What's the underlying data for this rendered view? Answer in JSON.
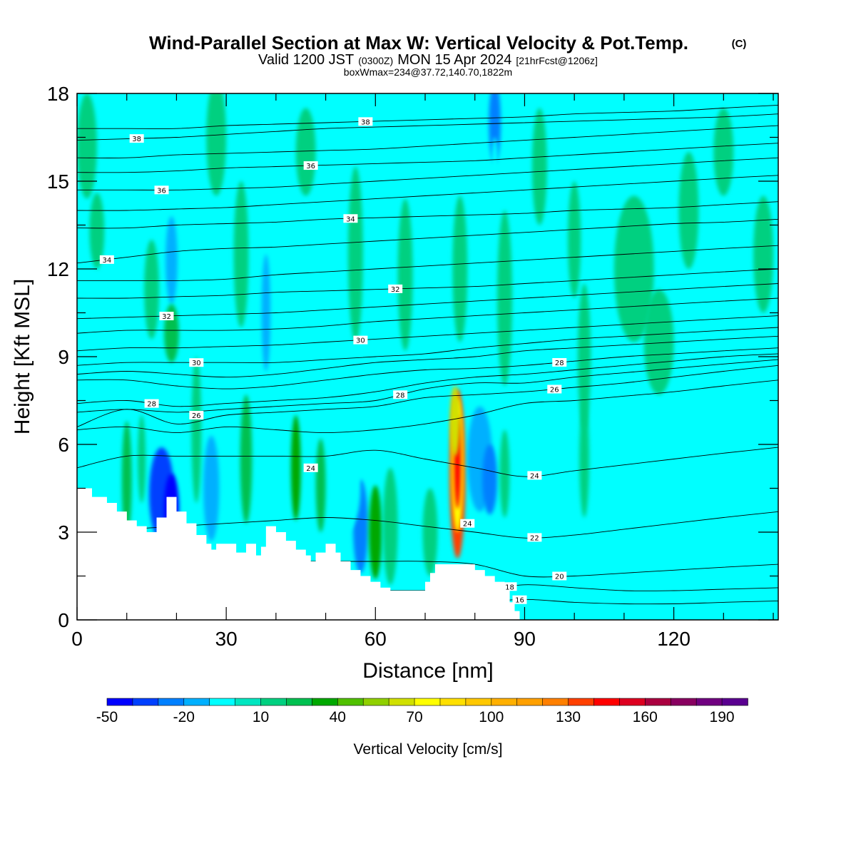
{
  "title": {
    "main": "Wind-Parallel Section at Max W: Vertical Velocity & Pot.Temp.",
    "copyright": "(C)",
    "valid_a": "Valid 1200 JST",
    "valid_b": "(0300Z)",
    "valid_c": "MON 15 Apr 2024",
    "valid_d": "[21hrFcst@1206z]",
    "box": "boxWmax=234@37.72,140.70,1822m"
  },
  "chart_data": {
    "type": "heatmap",
    "xlabel": "Distance [nm]",
    "ylabel": "Height [Kft MSL]",
    "xlim": [
      0,
      141
    ],
    "ylim": [
      0,
      18
    ],
    "x_ticks": [
      0,
      30,
      60,
      90,
      120
    ],
    "y_ticks": [
      0,
      3,
      6,
      9,
      12,
      15,
      18
    ],
    "colorbar": {
      "title": "Vertical Velocity [cm/s]",
      "min": -50,
      "step": 10,
      "labels": [
        -50,
        -20,
        10,
        40,
        70,
        100,
        130,
        160,
        190
      ],
      "colors": [
        "#0000ff",
        "#0040ff",
        "#0080ff",
        "#00b0ff",
        "#00ffff",
        "#00e6c0",
        "#00d080",
        "#00c050",
        "#00a800",
        "#50c000",
        "#90d000",
        "#d0e000",
        "#ffff00",
        "#ffe000",
        "#ffc800",
        "#ffb000",
        "#ffa000",
        "#ff8000",
        "#ff4000",
        "#ff0000",
        "#dd0020",
        "#aa0040",
        "#880060",
        "#700080",
        "#5a0090"
      ]
    },
    "terrain": [
      [
        0,
        4.5
      ],
      [
        3,
        4.5
      ],
      [
        3,
        4.2
      ],
      [
        6,
        4.2
      ],
      [
        6,
        4.0
      ],
      [
        8,
        4.0
      ],
      [
        8,
        3.7
      ],
      [
        10,
        3.7
      ],
      [
        10,
        3.4
      ],
      [
        12,
        3.4
      ],
      [
        12,
        3.2
      ],
      [
        14,
        3.2
      ],
      [
        14,
        3.0
      ],
      [
        16,
        3.0
      ],
      [
        16,
        3.5
      ],
      [
        18,
        3.5
      ],
      [
        18,
        4.2
      ],
      [
        20,
        4.2
      ],
      [
        20,
        3.7
      ],
      [
        22,
        3.7
      ],
      [
        22,
        3.3
      ],
      [
        24,
        3.3
      ],
      [
        24,
        2.9
      ],
      [
        26,
        2.9
      ],
      [
        26,
        2.6
      ],
      [
        27,
        2.6
      ],
      [
        27,
        2.4
      ],
      [
        28,
        2.4
      ],
      [
        28,
        2.6
      ],
      [
        32,
        2.6
      ],
      [
        32,
        2.3
      ],
      [
        34,
        2.3
      ],
      [
        34,
        2.6
      ],
      [
        36,
        2.6
      ],
      [
        36,
        2.2
      ],
      [
        37,
        2.2
      ],
      [
        37,
        2.5
      ],
      [
        38,
        2.5
      ],
      [
        38,
        3.2
      ],
      [
        40,
        3.2
      ],
      [
        40,
        3.0
      ],
      [
        42,
        3.0
      ],
      [
        42,
        2.7
      ],
      [
        44,
        2.7
      ],
      [
        44,
        2.4
      ],
      [
        46,
        2.4
      ],
      [
        46,
        2.2
      ],
      [
        47,
        2.2
      ],
      [
        47,
        2.0
      ],
      [
        48,
        2.0
      ],
      [
        48,
        2.3
      ],
      [
        50,
        2.3
      ],
      [
        50,
        2.6
      ],
      [
        52,
        2.6
      ],
      [
        52,
        2.3
      ],
      [
        53,
        2.3
      ],
      [
        53,
        2.0
      ],
      [
        55,
        2.0
      ],
      [
        55,
        1.7
      ],
      [
        57,
        1.7
      ],
      [
        57,
        1.5
      ],
      [
        59,
        1.5
      ],
      [
        59,
        1.3
      ],
      [
        61,
        1.3
      ],
      [
        61,
        1.1
      ],
      [
        63,
        1.1
      ],
      [
        63,
        1.0
      ],
      [
        70,
        1.0
      ],
      [
        70,
        1.3
      ],
      [
        71,
        1.3
      ],
      [
        71,
        1.6
      ],
      [
        72,
        1.6
      ],
      [
        72,
        1.9
      ],
      [
        80,
        1.9
      ],
      [
        80,
        1.7
      ],
      [
        82,
        1.7
      ],
      [
        82,
        1.5
      ],
      [
        84,
        1.5
      ],
      [
        84,
        1.3
      ],
      [
        86,
        1.3
      ],
      [
        86,
        1.0
      ],
      [
        87,
        1.0
      ],
      [
        87,
        0.6
      ],
      [
        88,
        0.6
      ],
      [
        88,
        0.3
      ],
      [
        89,
        0.3
      ],
      [
        89,
        0.0
      ]
    ],
    "theta_contours": [
      {
        "label": "38",
        "label_x": 58,
        "y": [
          16.8,
          16.8,
          16.8,
          16.9,
          16.95,
          17.0,
          17.05,
          17.1,
          17.15,
          17.2,
          17.3,
          17.35,
          17.4,
          17.5,
          17.6
        ]
      },
      {
        "label": "38",
        "label_x": 12,
        "y": [
          16.4,
          16.45,
          16.5,
          16.6,
          16.7,
          16.8,
          16.85,
          16.9,
          16.95,
          17.0,
          17.05,
          17.1,
          17.15,
          17.2,
          17.3
        ]
      },
      {
        "label": "",
        "label_x": 0,
        "y": [
          15.8,
          15.8,
          15.9,
          15.95,
          16.0,
          16.05,
          16.1,
          16.2,
          16.3,
          16.4,
          16.5,
          16.6,
          16.7,
          16.8,
          16.9
        ]
      },
      {
        "label": "36",
        "label_x": 47,
        "y": [
          15.3,
          15.3,
          15.35,
          15.45,
          15.5,
          15.55,
          15.6,
          15.65,
          15.7,
          15.8,
          15.9,
          16.0,
          16.1,
          16.2,
          16.3
        ]
      },
      {
        "label": "36",
        "label_x": 17,
        "y": [
          14.7,
          14.7,
          14.7,
          14.75,
          14.8,
          14.9,
          15.0,
          15.1,
          15.2,
          15.3,
          15.4,
          15.5,
          15.6,
          15.7,
          15.8
        ]
      },
      {
        "label": "",
        "label_x": 0,
        "y": [
          14.0,
          14.0,
          14.05,
          14.1,
          14.2,
          14.3,
          14.4,
          14.5,
          14.6,
          14.7,
          14.8,
          14.9,
          15.0,
          15.1,
          15.2
        ]
      },
      {
        "label": "34",
        "label_x": 55,
        "y": [
          13.4,
          13.4,
          13.5,
          13.55,
          13.6,
          13.7,
          13.75,
          13.8,
          13.85,
          13.9,
          14.0,
          14.05,
          14.1,
          14.2,
          14.3
        ]
      },
      {
        "label": "34",
        "label_x": 6,
        "y": [
          12.2,
          12.4,
          12.6,
          12.7,
          12.75,
          12.85,
          12.95,
          13.05,
          13.15,
          13.25,
          13.35,
          13.45,
          13.55,
          13.6,
          13.7
        ]
      },
      {
        "label": "",
        "label_x": 0,
        "y": [
          11.6,
          11.6,
          11.6,
          11.65,
          11.8,
          11.9,
          12.0,
          12.1,
          12.2,
          12.3,
          12.4,
          12.5,
          12.6,
          12.7,
          12.8
        ]
      },
      {
        "label": "32",
        "label_x": 64,
        "y": [
          11.0,
          11.0,
          11.05,
          11.1,
          11.2,
          11.25,
          11.3,
          11.35,
          11.4,
          11.5,
          11.6,
          11.7,
          11.8,
          11.9,
          12.0
        ]
      },
      {
        "label": "32",
        "label_x": 18,
        "y": [
          10.3,
          10.35,
          10.4,
          10.45,
          10.5,
          10.6,
          10.7,
          10.8,
          10.9,
          11.0,
          11.1,
          11.2,
          11.3,
          11.4,
          11.5
        ]
      },
      {
        "label": "",
        "label_x": 0,
        "y": [
          9.8,
          9.9,
          9.9,
          9.9,
          9.95,
          10.05,
          10.2,
          10.3,
          10.4,
          10.5,
          10.6,
          10.7,
          10.8,
          10.9,
          11.0
        ]
      },
      {
        "label": "30",
        "label_x": 57,
        "y": [
          9.2,
          9.3,
          9.3,
          9.35,
          9.4,
          9.5,
          9.6,
          9.7,
          9.8,
          9.9,
          10.0,
          10.1,
          10.2,
          10.3,
          10.4
        ]
      },
      {
        "label": "30",
        "label_x": 24,
        "y": [
          8.7,
          8.8,
          8.8,
          8.8,
          8.8,
          8.9,
          9.0,
          9.1,
          9.3,
          9.45,
          9.6,
          9.7,
          9.8,
          9.9,
          10.0
        ]
      },
      {
        "label": "",
        "label_x": 0,
        "y": [
          8.4,
          8.5,
          8.4,
          8.3,
          8.4,
          8.6,
          8.8,
          8.9,
          9.0,
          9.2,
          9.3,
          9.4,
          9.5,
          9.6,
          9.7
        ]
      },
      {
        "label": "28",
        "label_x": 97,
        "y": [
          8.2,
          8.2,
          8.0,
          7.9,
          8.0,
          8.2,
          8.4,
          8.55,
          8.6,
          8.7,
          8.85,
          9.0,
          9.1,
          9.2,
          9.3
        ]
      },
      {
        "label": "28",
        "label_x": 15,
        "y": [
          7.4,
          7.5,
          7.3,
          7.4,
          7.5,
          7.6,
          7.8,
          8.1,
          8.3,
          8.4,
          8.55,
          8.7,
          8.85,
          9.0,
          9.1
        ]
      },
      {
        "label": "28",
        "label_x": 65,
        "y": [
          7.1,
          7.2,
          7.1,
          7.2,
          7.3,
          7.4,
          7.5,
          7.9,
          8.1,
          8.1,
          8.3,
          8.45,
          8.6,
          8.75,
          8.9
        ]
      },
      {
        "label": "26",
        "label_x": 96,
        "y": [
          6.6,
          7.2,
          6.7,
          7.0,
          7.1,
          7.2,
          7.3,
          7.6,
          7.7,
          7.8,
          7.95,
          8.1,
          8.3,
          8.5,
          8.7
        ]
      },
      {
        "label": "",
        "label_x": 0,
        "y": [
          6.5,
          6.6,
          6.4,
          6.6,
          6.5,
          6.4,
          6.5,
          6.7,
          7.0,
          7.4,
          7.5,
          7.65,
          7.8,
          8.0,
          8.2
        ]
      },
      {
        "label": "24",
        "label_x": 92,
        "y": [
          5.2,
          5.6,
          5.6,
          5.6,
          5.6,
          5.6,
          5.8,
          5.5,
          5.2,
          4.9,
          5.1,
          5.3,
          5.5,
          5.7,
          5.9
        ]
      },
      {
        "label": "22",
        "label_x": 92,
        "y": [
          3.0,
          3.1,
          3.2,
          3.3,
          3.4,
          3.5,
          3.4,
          3.2,
          3.0,
          2.8,
          2.9,
          3.1,
          3.3,
          3.5,
          3.7
        ]
      },
      {
        "label": "20",
        "label_x": 97,
        "y": [
          2.0,
          2.0,
          2.0,
          2.0,
          2.0,
          2.0,
          2.0,
          2.0,
          1.9,
          1.5,
          1.5,
          1.6,
          1.7,
          1.8,
          1.9
        ]
      },
      {
        "label": "18",
        "label_x": 87,
        "y": [
          1.0,
          1.0,
          1.0,
          1.0,
          1.0,
          1.0,
          1.0,
          1.0,
          1.0,
          1.2,
          1.1,
          1.0,
          1.0,
          1.05,
          1.1
        ]
      },
      {
        "label": "16",
        "label_x": 89,
        "y": [
          0.6,
          0.6,
          0.6,
          0.6,
          0.6,
          0.6,
          0.6,
          0.6,
          0.6,
          0.7,
          0.6,
          0.55,
          0.55,
          0.6,
          0.65
        ]
      }
    ],
    "contour_x": [
      0,
      10,
      20,
      30,
      40,
      50,
      60,
      70,
      80,
      90,
      100,
      110,
      120,
      130,
      141
    ],
    "extra_labels": [
      {
        "label": "26",
        "x": 24,
        "y": 7.0
      },
      {
        "label": "24",
        "x": 47,
        "y": 5.2
      },
      {
        "label": "24",
        "x": 78.5,
        "y": 3.3
      }
    ],
    "w_features": [
      {
        "x": 76.5,
        "y": 5.0,
        "rx": 1.6,
        "ry": 2.9,
        "w": 130
      },
      {
        "x": 76.5,
        "y": 5.3,
        "rx": 1.2,
        "ry": 2.3,
        "w": 75
      },
      {
        "x": 76.5,
        "y": 5.4,
        "rx": 0.7,
        "ry": 1.6,
        "w": 140
      },
      {
        "x": 76.0,
        "y": 6.8,
        "rx": 1.0,
        "ry": 1.2,
        "w": 60
      },
      {
        "x": 81,
        "y": 5.5,
        "rx": 2.5,
        "ry": 1.8,
        "w": -15
      },
      {
        "x": 83,
        "y": 4.8,
        "rx": 1.5,
        "ry": 1.2,
        "w": -25
      },
      {
        "x": 62,
        "y": 6.0,
        "rx": 6.0,
        "ry": 1.0,
        "w": -10
      },
      {
        "x": 57,
        "y": 3.2,
        "rx": 1.5,
        "ry": 1.6,
        "w": -30
      },
      {
        "x": 54,
        "y": 4.5,
        "rx": 3.0,
        "ry": 1.5,
        "w": -10
      },
      {
        "x": 17,
        "y": 4.3,
        "rx": 2.5,
        "ry": 1.6,
        "w": -35
      },
      {
        "x": 19,
        "y": 3.8,
        "rx": 1.5,
        "ry": 1.2,
        "w": -45
      },
      {
        "x": 27,
        "y": 4.5,
        "rx": 1.6,
        "ry": 1.8,
        "w": -20
      },
      {
        "x": 19,
        "y": 12.3,
        "rx": 1.2,
        "ry": 1.5,
        "w": -15
      },
      {
        "x": 22,
        "y": 8.8,
        "rx": 1.6,
        "ry": 2.2,
        "w": -10
      },
      {
        "x": 38,
        "y": 10.5,
        "rx": 0.9,
        "ry": 2.0,
        "w": -15
      },
      {
        "x": 84,
        "y": 17.0,
        "rx": 1.2,
        "ry": 1.4,
        "w": -25
      },
      {
        "x": 84,
        "y": 15.0,
        "rx": 0.8,
        "ry": 1.5,
        "w": -10
      },
      {
        "x": 1,
        "y": 5.8,
        "rx": 3.0,
        "ry": 1.3,
        "w": -10
      },
      {
        "x": 10,
        "y": 4.8,
        "rx": 1.0,
        "ry": 2.0,
        "w": 20
      },
      {
        "x": 13,
        "y": 5.5,
        "rx": 0.8,
        "ry": 1.5,
        "w": 15
      },
      {
        "x": 24,
        "y": 6.5,
        "rx": 1.0,
        "ry": 2.5,
        "w": 12
      },
      {
        "x": 34,
        "y": 5.5,
        "rx": 1.2,
        "ry": 2.2,
        "w": 25
      },
      {
        "x": 44,
        "y": 5.2,
        "rx": 1.0,
        "ry": 1.8,
        "w": 30
      },
      {
        "x": 49,
        "y": 4.6,
        "rx": 1.0,
        "ry": 1.6,
        "w": 20
      },
      {
        "x": 60,
        "y": 3.0,
        "rx": 1.3,
        "ry": 1.6,
        "w": 35
      },
      {
        "x": 63,
        "y": 3.2,
        "rx": 1.5,
        "ry": 2.0,
        "w": 15
      },
      {
        "x": 71,
        "y": 3.0,
        "rx": 1.5,
        "ry": 1.5,
        "w": 12
      },
      {
        "x": 86,
        "y": 5.0,
        "rx": 1.0,
        "ry": 1.5,
        "w": 15
      },
      {
        "x": 2,
        "y": 16.2,
        "rx": 2.0,
        "ry": 1.8,
        "w": 10
      },
      {
        "x": 4,
        "y": 13.3,
        "rx": 1.5,
        "ry": 1.3,
        "w": 10
      },
      {
        "x": 15,
        "y": 11.3,
        "rx": 1.5,
        "ry": 1.7,
        "w": 10
      },
      {
        "x": 19,
        "y": 9.8,
        "rx": 1.5,
        "ry": 1.0,
        "w": 20
      },
      {
        "x": 28,
        "y": 16.5,
        "rx": 2.0,
        "ry": 2.0,
        "w": 10
      },
      {
        "x": 33,
        "y": 12.5,
        "rx": 1.5,
        "ry": 2.5,
        "w": 10
      },
      {
        "x": 46,
        "y": 16.0,
        "rx": 2.0,
        "ry": 1.5,
        "w": 10
      },
      {
        "x": 56,
        "y": 12.5,
        "rx": 1.5,
        "ry": 3.0,
        "w": 10
      },
      {
        "x": 66,
        "y": 11.8,
        "rx": 1.5,
        "ry": 2.6,
        "w": 10
      },
      {
        "x": 77,
        "y": 12.0,
        "rx": 1.5,
        "ry": 2.5,
        "w": 10
      },
      {
        "x": 86,
        "y": 11.0,
        "rx": 1.5,
        "ry": 3.0,
        "w": 10
      },
      {
        "x": 93,
        "y": 15.5,
        "rx": 1.5,
        "ry": 2.0,
        "w": 10
      },
      {
        "x": 100,
        "y": 13.0,
        "rx": 1.3,
        "ry": 2.0,
        "w": 10
      },
      {
        "x": 102,
        "y": 9.0,
        "rx": 1.3,
        "ry": 2.5,
        "w": 10
      },
      {
        "x": 112,
        "y": 12.0,
        "rx": 4.0,
        "ry": 2.5,
        "w": 10
      },
      {
        "x": 117,
        "y": 9.5,
        "rx": 3.0,
        "ry": 1.8,
        "w": 10
      },
      {
        "x": 123,
        "y": 14.0,
        "rx": 2.0,
        "ry": 2.0,
        "w": 10
      },
      {
        "x": 130,
        "y": 16.0,
        "rx": 2.0,
        "ry": 1.5,
        "w": 10
      },
      {
        "x": 138,
        "y": 12.5,
        "rx": 2.0,
        "ry": 2.0,
        "w": 10
      },
      {
        "x": 102,
        "y": 5.5,
        "rx": 1.0,
        "ry": 2.0,
        "w": 10
      }
    ]
  }
}
